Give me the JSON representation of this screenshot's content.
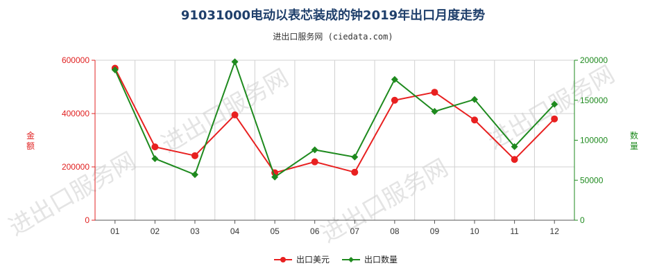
{
  "title": "91031000电动以表芯装成的钟2019年出口月度走势",
  "subtitle": "进出口服务网 (ciedata.com)",
  "watermark": "进出口服务网",
  "chart_data": {
    "type": "line",
    "categories": [
      "01",
      "02",
      "03",
      "04",
      "05",
      "06",
      "07",
      "08",
      "09",
      "10",
      "11",
      "12"
    ],
    "left_axis": {
      "label": "金额",
      "ticks": [
        "0",
        "200000",
        "400000",
        "600000"
      ],
      "ylim": [
        0,
        600000
      ],
      "color": "#e02020"
    },
    "right_axis": {
      "label": "数量",
      "ticks": [
        "0",
        "50000",
        "100000",
        "150000",
        "200000"
      ],
      "ylim": [
        0,
        200000
      ],
      "color": "#1e8a1e"
    },
    "series": [
      {
        "name": "出口美元",
        "axis": "left",
        "color": "#e82020",
        "marker": "circle",
        "values": [
          570000,
          275000,
          242000,
          395000,
          178000,
          219000,
          180000,
          450000,
          480000,
          376000,
          228000,
          380000
        ]
      },
      {
        "name": "出口数量",
        "axis": "right",
        "color": "#1e8a1e",
        "marker": "diamond",
        "values": [
          188000,
          77000,
          57000,
          198000,
          54000,
          88000,
          79000,
          176000,
          136000,
          151000,
          92000,
          145000
        ]
      }
    ],
    "grid": true,
    "legend_position": "bottom"
  }
}
